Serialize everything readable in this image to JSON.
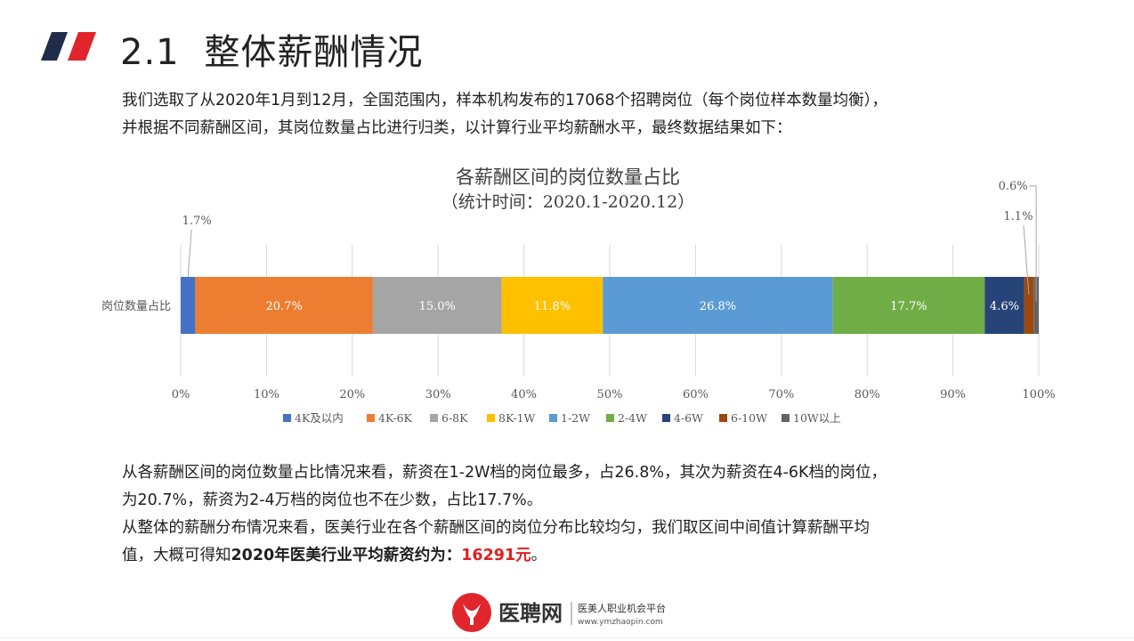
{
  "header": {
    "number": "2.1",
    "title": "整体薪酬情况"
  },
  "intro": {
    "line1": "我们选取了从2020年1月到12月，全国范围内，样本机构发布的17068个招聘岗位（每个岗位样本数量均衡），",
    "line2": "并根据不同薪酬区间，其岗位数量占比进行归类，以计算行业平均薪酬水平，最终数据结果如下："
  },
  "chart_data": {
    "type": "bar",
    "orientation": "horizontal",
    "stacked": true,
    "title": "各薪酬区间的岗位数量占比",
    "subtitle": "（统计时间：2020.1-2020.12）",
    "categories": [
      "岗位数量占比"
    ],
    "xlim": [
      0,
      100
    ],
    "x_ticks": [
      "0%",
      "10%",
      "20%",
      "30%",
      "40%",
      "50%",
      "60%",
      "70%",
      "80%",
      "90%",
      "100%"
    ],
    "grid": true,
    "legend_position": "bottom",
    "series": [
      {
        "name": "4K及以内",
        "value": 1.7,
        "label": "1.7%",
        "color": "#4472c4",
        "label_outside": true
      },
      {
        "name": "4K-6K",
        "value": 20.7,
        "label": "20.7%",
        "color": "#ed7d31",
        "label_outside": false
      },
      {
        "name": "6-8K",
        "value": 15.0,
        "label": "15.0%",
        "color": "#a5a5a5",
        "label_outside": false
      },
      {
        "name": "8K-1W",
        "value": 11.8,
        "label": "11.8%",
        "color": "#ffc000",
        "label_outside": false
      },
      {
        "name": "1-2W",
        "value": 26.8,
        "label": "26.8%",
        "color": "#5b9bd5",
        "label_outside": false
      },
      {
        "name": "2-4W",
        "value": 17.7,
        "label": "17.7%",
        "color": "#70ad47",
        "label_outside": false
      },
      {
        "name": "4-6W",
        "value": 4.6,
        "label": "4.6%",
        "color": "#264478",
        "label_outside": false
      },
      {
        "name": "6-10W",
        "value": 1.1,
        "label": "1.1%",
        "color": "#9e480e",
        "label_outside": true
      },
      {
        "name": "10W以上",
        "value": 0.6,
        "label": "0.6%",
        "color": "#636363",
        "label_outside": true
      }
    ]
  },
  "summary": {
    "p1_line1": "从各薪酬区间的岗位数量占比情况来看，薪资在1-2W档的岗位最多，占26.8%，其次为薪资在4-6K档的岗位，",
    "p1_line2": "为20.7%，薪资为2-4万档的岗位也不在少数，占比17.7%。",
    "p2_line1": "从整体的薪酬分布情况来看，医美行业在各个薪酬区间的岗位分布比较均匀，我们取区间中间值计算薪酬平均",
    "p2_line2_prefix": "值，大概可得知",
    "p2_line2_bold": "2020年医美行业平均薪资约为：",
    "p2_line2_value": "16291元",
    "p2_line2_suffix": "。"
  },
  "footer": {
    "brand": "医聘网",
    "tagline": "医美人职业机会平台",
    "url": "www.ymzhaopin.com"
  },
  "colors": {
    "accent_red": "#e0262c",
    "accent_navy": "#1f2d4a"
  }
}
